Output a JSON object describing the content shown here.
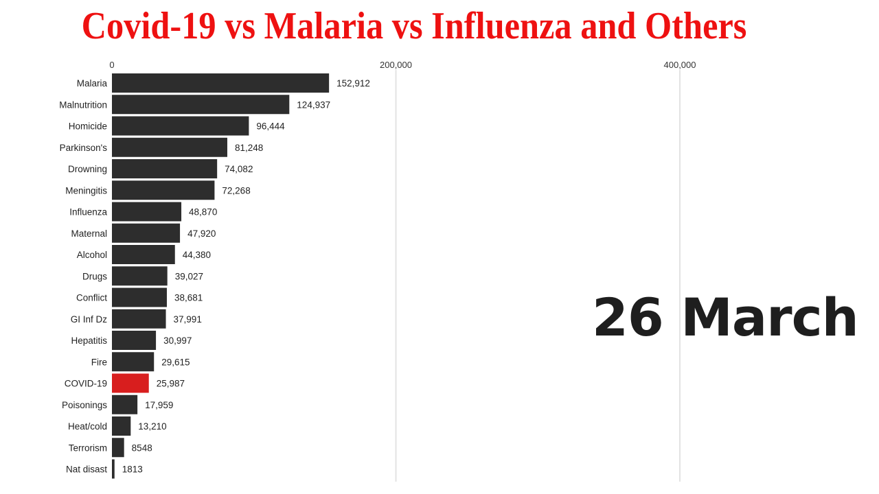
{
  "title": "Covid-19 vs Malaria vs Influenza and Others",
  "date_label": "26 March",
  "colors": {
    "bar": "#2d2d2d",
    "highlight": "#d81e1e",
    "title": "#ee1111"
  },
  "chart_data": {
    "type": "bar",
    "orientation": "horizontal",
    "title": "Covid-19 vs Malaria vs Influenza and Others",
    "xlabel": "",
    "ylabel": "",
    "xlim": [
      0,
      400000
    ],
    "ticks": [
      {
        "value": 0,
        "label": "0"
      },
      {
        "value": 200000,
        "label": "200,000"
      },
      {
        "value": 400000,
        "label": "400,000"
      }
    ],
    "grid": true,
    "categories": [
      "Malaria",
      "Malnutrition",
      "Homicide",
      "Parkinson's",
      "Drowning",
      "Meningitis",
      "Influenza",
      "Maternal",
      "Alcohol",
      "Drugs",
      "Conflict",
      "GI Inf Dz",
      "Hepatitis",
      "Fire",
      "COVID-19",
      "Poisonings",
      "Heat/cold",
      "Terrorism",
      "Nat disast"
    ],
    "values": [
      152912,
      124937,
      96444,
      81248,
      74082,
      72268,
      48870,
      47920,
      44380,
      39027,
      38681,
      37991,
      30997,
      29615,
      25987,
      17959,
      13210,
      8548,
      1813
    ],
    "value_labels": [
      "152,912",
      "124,937",
      "96,444",
      "81,248",
      "74,082",
      "72,268",
      "48,870",
      "47,920",
      "44,380",
      "39,027",
      "38,681",
      "37,991",
      "30,997",
      "29,615",
      "25,987",
      "17,959",
      "13,210",
      "8548",
      "1813"
    ],
    "highlight": "COVID-19"
  }
}
